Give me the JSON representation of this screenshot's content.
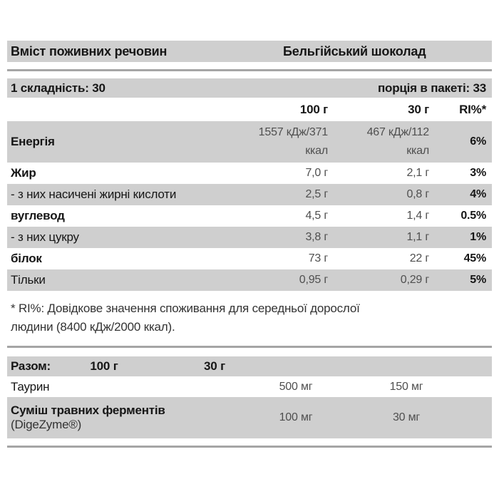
{
  "colors": {
    "row_shade": "#cfcfcf",
    "divider": "#a5a5a5",
    "label_text": "#161616",
    "value_text": "#4f4f4f",
    "note_text": "#333333"
  },
  "title_row": {
    "left": "Вміст поживних речовин",
    "right": "Бельгійський шоколад"
  },
  "serving_row": {
    "left": "1 складність: 30",
    "right": "порція в пакеті: 33"
  },
  "column_headers": {
    "per_100": "100 г",
    "per_30": "30 г",
    "ri": "RI%*"
  },
  "nutrients": [
    {
      "label": "Енергія",
      "per_100": "1557 кДж/371\nккал",
      "per_30": "467 кДж/112\nккал",
      "ri": "6%"
    },
    {
      "label": "Жир",
      "per_100": "7,0 г",
      "per_30": "2,1 г",
      "ri": "3%"
    },
    {
      "label": "- з них насичені жирні кислоти",
      "per_100": "2,5 г",
      "per_30": "0,8 г",
      "ri": "4%"
    },
    {
      "label": "вуглевод",
      "per_100": "4,5 г",
      "per_30": "1,4 г",
      "ri": "0.5%"
    },
    {
      "label": "- з них цукру",
      "per_100": "3,8 г",
      "per_30": "1,1 г",
      "ri": "1%"
    },
    {
      "label": "білок",
      "per_100": "73 г",
      "per_30": "22 г",
      "ri": "45%"
    },
    {
      "label": "Тільки",
      "per_100": "0,95 г",
      "per_30": "0,29 г",
      "ri": "5%"
    }
  ],
  "footnote": "* RI%: Довідкове значення споживання для середньої дорослої\nлюдини (8400 кДж/2000 ккал).",
  "supplement_table": {
    "header": {
      "label": "Разом:",
      "per_100": "100 г",
      "per_30": "30 г"
    },
    "rows": [
      {
        "label": "Таурин",
        "label_note": "",
        "per_100": "500 мг",
        "per_30": "150 мг"
      },
      {
        "label": "Суміш травних ферментів",
        "label_note": "(DigeZyme®)",
        "per_100": "100 мг",
        "per_30": "30 мг"
      }
    ]
  }
}
